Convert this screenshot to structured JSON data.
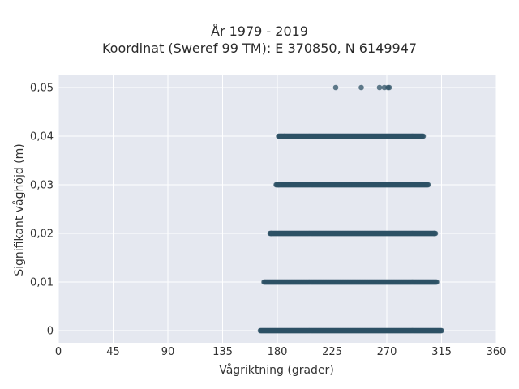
{
  "chart_data": {
    "type": "scatter",
    "title_lines": [
      "År 1979 - 2019",
      "Koordinat (Sweref 99 TM): E 370850, N 6149947"
    ],
    "xlabel": "Vågriktning (grader)",
    "ylabel": "Signifikant våghöjd (m)",
    "xlim": [
      0,
      360
    ],
    "ylim": [
      -0.0025,
      0.0525
    ],
    "xticks": [
      0,
      45,
      90,
      135,
      180,
      225,
      270,
      315,
      360
    ],
    "xtick_labels": [
      "0",
      "45",
      "90",
      "135",
      "180",
      "225",
      "270",
      "315",
      "360"
    ],
    "yticks": [
      0,
      0.01,
      0.02,
      0.03,
      0.04,
      0.05
    ],
    "ytick_labels": [
      "0",
      "0,01",
      "0,02",
      "0,03",
      "0,04",
      "0,05"
    ],
    "grid": true,
    "marker_color": "#2e5266",
    "background_color": "#e5e8f0",
    "rows": [
      {
        "y": 0,
        "x_min": 166,
        "x_max": 315
      },
      {
        "y": 0.01,
        "x_min": 169,
        "x_max": 311
      },
      {
        "y": 0.02,
        "x_min": 174,
        "x_max": 310
      },
      {
        "y": 0.03,
        "x_min": 179,
        "x_max": 304
      },
      {
        "y": 0.04,
        "x_min": 181,
        "x_max": 300
      }
    ],
    "isolated_points": [
      {
        "x": 228,
        "y": 0.05
      },
      {
        "x": 249,
        "y": 0.05
      },
      {
        "x": 264,
        "y": 0.05
      },
      {
        "x": 268,
        "y": 0.05
      },
      {
        "x": 271,
        "y": 0.05
      },
      {
        "x": 272,
        "y": 0.05
      },
      {
        "x": 186,
        "y": 0.04
      },
      {
        "x": 183,
        "y": 0.04
      },
      {
        "x": 181,
        "y": 0.03
      },
      {
        "x": 175,
        "y": 0.02
      },
      {
        "x": 309,
        "y": 0.02
      }
    ]
  }
}
